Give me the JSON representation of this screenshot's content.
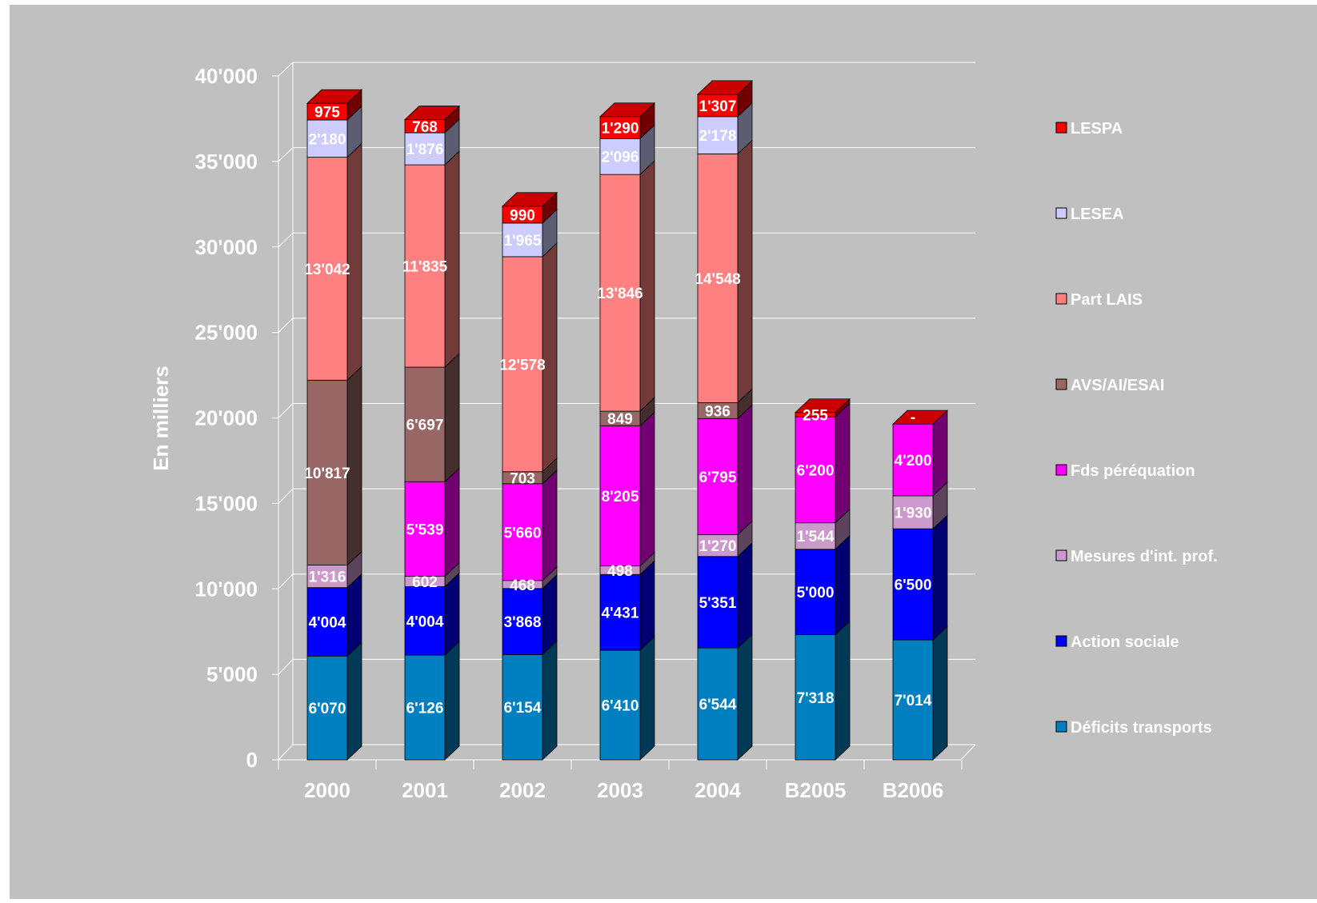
{
  "chart_data": {
    "type": "bar",
    "stacked": true,
    "three_d": true,
    "title": "",
    "xlabel": "",
    "ylabel": "En milliers",
    "ylim": [
      0,
      40000
    ],
    "yticks": [
      0,
      5000,
      10000,
      15000,
      20000,
      25000,
      30000,
      35000,
      40000
    ],
    "ytick_labels": [
      "0",
      "5'000",
      "10'000",
      "15'000",
      "20'000",
      "25'000",
      "30'000",
      "35'000",
      "40'000"
    ],
    "grid": true,
    "legend_position": "right",
    "categories": [
      "2000",
      "2001",
      "2002",
      "2003",
      "2004",
      "B2005",
      "B2006"
    ],
    "series": [
      {
        "name": "Déficits transports",
        "color": "#0080C0",
        "values": [
          6070,
          6126,
          6154,
          6410,
          6544,
          7318,
          7014
        ],
        "labels": [
          "6'070",
          "6'126",
          "6'154",
          "6'410",
          "6'544",
          "7'318",
          "7'014"
        ]
      },
      {
        "name": "Action sociale",
        "color": "#0000FF",
        "values": [
          4004,
          4004,
          3868,
          4431,
          5351,
          5000,
          6500
        ],
        "labels": [
          "4'004",
          "4'004",
          "3'868",
          "4'431",
          "5'351",
          "5'000",
          "6'500"
        ]
      },
      {
        "name": "Mesures d'int. prof.",
        "color": "#CC99CC",
        "values": [
          1316,
          602,
          468,
          498,
          1270,
          1544,
          1930
        ],
        "labels": [
          "1'316",
          "602",
          "468",
          "498",
          "1'270",
          "1'544",
          "1'930"
        ]
      },
      {
        "name": "Fds péréquation",
        "color": "#FF00FF",
        "values": [
          0,
          5539,
          5660,
          8205,
          6795,
          6200,
          4200
        ],
        "labels": [
          "",
          "5'539",
          "5'660",
          "8'205",
          "6'795",
          "6'200",
          "4'200"
        ]
      },
      {
        "name": "AVS/AI/ESAI",
        "color": "#996666",
        "values": [
          10817,
          6697,
          703,
          849,
          936,
          0,
          0
        ],
        "labels": [
          "10'817",
          "6'697",
          "703",
          "849",
          "936",
          "",
          ""
        ]
      },
      {
        "name": "Part LAIS",
        "color": "#FF8080",
        "values": [
          13042,
          11835,
          12578,
          13846,
          14548,
          0,
          0
        ],
        "labels": [
          "13'042",
          "11'835",
          "12'578",
          "13'846",
          "14'548",
          "",
          ""
        ]
      },
      {
        "name": "LESEA",
        "color": "#CCCCFF",
        "values": [
          2180,
          1876,
          1965,
          2096,
          2178,
          0,
          0
        ],
        "labels": [
          "2'180",
          "1'876",
          "1'965",
          "2'096",
          "2'178",
          "",
          ""
        ]
      },
      {
        "name": "LESPA",
        "color": "#FF0000",
        "values": [
          975,
          768,
          990,
          1290,
          1307,
          255,
          0
        ],
        "labels": [
          "975",
          "768",
          "990",
          "1'290",
          "1'307",
          "255",
          "-"
        ]
      }
    ]
  },
  "colors": {
    "background": "#C0C0C0",
    "grid": "#FFFFFF",
    "text": "#FFFFFF"
  }
}
